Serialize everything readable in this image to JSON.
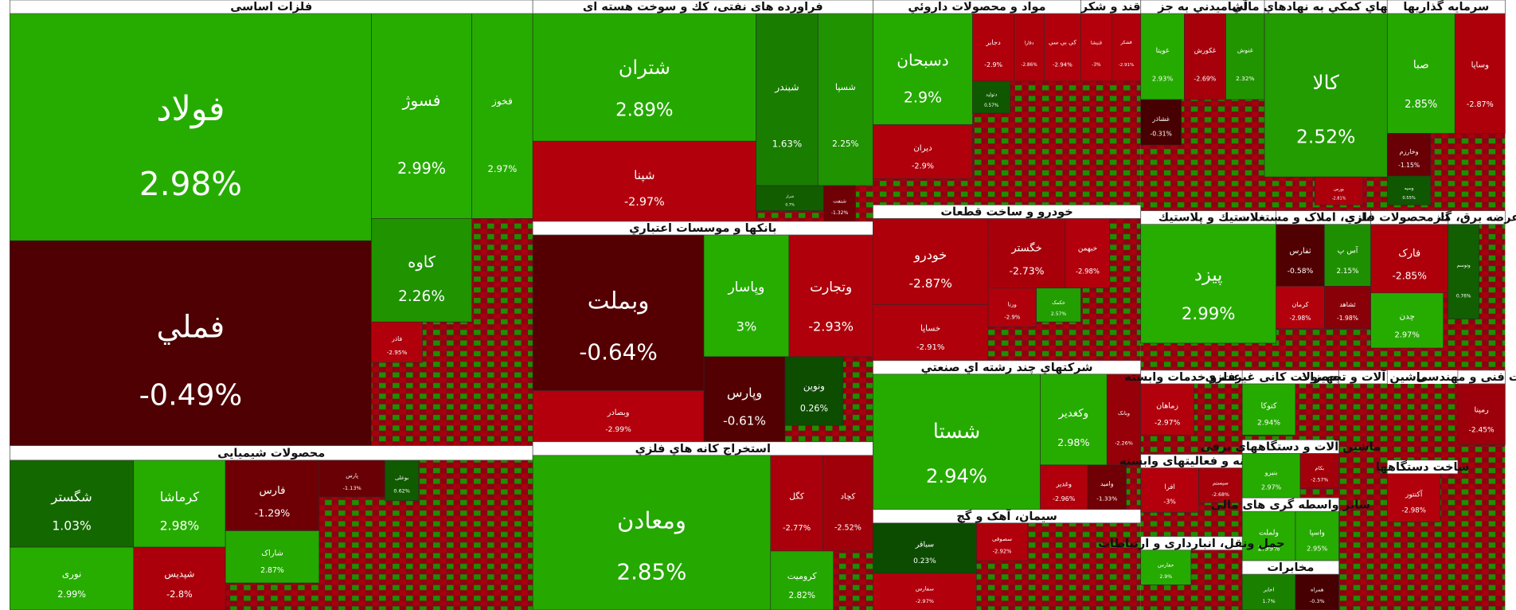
{
  "chart_data": {
    "type": "treemap",
    "positive_color": "#26ad00",
    "negative_color": "#b3000c",
    "zero_positive_color": "#0a4400",
    "zero_negative_color": "#3a0000",
    "groups": [
      {
        "name": "فلزات اساسی",
        "names": [
          "فولاد",
          "فملي",
          "فسوژ",
          "فخوز",
          "کاوه",
          "فاذر"
        ],
        "values": [
          2.98,
          -0.49,
          2.99,
          2.97,
          2.26,
          -2.95
        ],
        "value_labels": [
          "2.98%",
          "-0.49%",
          "2.99%",
          "2.97%",
          "2.26%",
          "-2.95%"
        ]
      },
      {
        "name": "محصولات شیمیایی",
        "names": [
          "شگستر",
          "کرماشا",
          "نوری",
          "شپدیس",
          "فارس",
          "شاراک",
          "پارس",
          "بوعلی"
        ],
        "values": [
          1.03,
          2.98,
          2.99,
          -2.8,
          -1.29,
          2.87,
          -1.13,
          0.62
        ],
        "value_labels": [
          "1.03%",
          "2.98%",
          "2.99%",
          "-2.8%",
          "-1.29%",
          "2.87%",
          "-1.13%",
          "0.62%"
        ]
      },
      {
        "name": "فراورده های نفتی، كك و سوخت هسته ای",
        "names": [
          "شتران",
          "شپنا",
          "شبندر",
          "شسپا",
          "شراز",
          "شنفت"
        ],
        "values": [
          2.89,
          -2.97,
          1.63,
          2.25,
          0.7,
          -1.32
        ],
        "value_labels": [
          "2.89%",
          "-2.97%",
          "1.63%",
          "2.25%",
          "0.7%",
          "-1.32%"
        ]
      },
      {
        "name": "بانكها و موسسات اعتباري",
        "names": [
          "وبملت",
          "وبصادر",
          "وپاسار",
          "وتجارت",
          "وپارس",
          "ونوین"
        ],
        "values": [
          -0.64,
          -2.99,
          3,
          -2.93,
          -0.61,
          0.26
        ],
        "value_labels": [
          "-0.64%",
          "-2.99%",
          "3%",
          "-2.93%",
          "-0.61%",
          "0.26%"
        ]
      },
      {
        "name": "استخراج كانه هاي فلزي",
        "names": [
          "ومعادن",
          "کگل",
          "کچاد",
          "کروميت"
        ],
        "values": [
          2.85,
          -2.77,
          -2.52,
          2.82
        ],
        "value_labels": [
          "2.85%",
          "-2.77%",
          "-2.52%",
          "2.82%"
        ]
      },
      {
        "name": "مواد و محصولات داروئي",
        "names": [
          "دسبحان",
          "دیران",
          "دجابر",
          "دفارا",
          "کی بی سی",
          "دتولید"
        ],
        "values": [
          2.9,
          -2.9,
          -2.9,
          -2.86,
          -2.94,
          0.57
        ],
        "value_labels": [
          "2.9%",
          "-2.9%",
          "-2.9%",
          "-2.86%",
          "-2.94%",
          "0.57%"
        ]
      },
      {
        "name": "قند و شکر",
        "names": [
          "قنیشا",
          "قشکر"
        ],
        "values": [
          -3,
          -2.91
        ],
        "value_labels": [
          "-3%",
          "-2.91%"
        ]
      },
      {
        "name": "خودرو و ساخت قطعات",
        "names": [
          "خودرو",
          "خساپا",
          "خگستر",
          "خبهمن",
          "ورنا",
          "خکمک"
        ],
        "values": [
          -2.87,
          -2.91,
          -2.73,
          -2.98,
          -2.9,
          2.57
        ],
        "value_labels": [
          "-2.87%",
          "-2.91%",
          "-2.73%",
          "-2.98%",
          "-2.9%",
          "2.57%"
        ]
      },
      {
        "name": "شرکتهاي چند رشته اي صنعتي",
        "names": [
          "شستا",
          "وکغدیر",
          "وبانک",
          "وغدیر",
          "وامید"
        ],
        "values": [
          2.94,
          2.98,
          -2.26,
          -2.96,
          -1.33
        ],
        "value_labels": [
          "2.94%",
          "2.98%",
          "-2.26%",
          "-2.96%",
          "-1.33%"
        ]
      },
      {
        "name": "سیمان، آهک و گچ",
        "names": [
          "سباقر",
          "سفارس",
          "سصوفی"
        ],
        "values": [
          0.23,
          -2.97,
          -2.92
        ],
        "value_labels": [
          "0.23%",
          "-2.97%",
          "-2.92%"
        ]
      },
      {
        "name": "آشاميدني به جز",
        "names": [
          "غويتا",
          "غکورش",
          "غنوش",
          "غشاذر"
        ],
        "values": [
          2.93,
          -2.69,
          2.32,
          -0.31
        ],
        "value_labels": [
          "2.93%",
          "-2.69%",
          "2.32%",
          "-0.31%"
        ]
      },
      {
        "name": "فعاليتهاي كمكي به نهادهاي مالي",
        "names": [
          "کالا",
          "بورس"
        ],
        "values": [
          2.52,
          -2.81
        ],
        "value_labels": [
          "2.52%",
          "-2.81%"
        ]
      },
      {
        "name": "سرمايه گذاريها",
        "names": [
          "صبا",
          "وساپا",
          "وخارزم",
          "وسپه"
        ],
        "values": [
          2.85,
          -2.87,
          -1.15,
          0.55
        ],
        "value_labels": [
          "2.85%",
          "-2.87%",
          "-1.15%",
          "0.55%"
        ]
      },
      {
        "name": "لاستيك و پلاستيك",
        "names": [
          "پیزد"
        ],
        "values": [
          2.99
        ],
        "value_labels": [
          "2.99%"
        ]
      },
      {
        "name": "انبوه سازی، املاک و مستغلات",
        "names": [
          "ثفارس",
          "آس پ",
          "کرمان",
          "ثشاهد"
        ],
        "values": [
          -0.58,
          2.15,
          -2.98,
          -1.98
        ],
        "value_labels": [
          "-0.58%",
          "2.15%",
          "-2.98%",
          "-1.98%"
        ]
      },
      {
        "name": "ساخت محصولات فلزي",
        "names": [
          "فارک",
          "چدن"
        ],
        "values": [
          -2.85,
          2.97
        ],
        "value_labels": [
          "-2.85%",
          "2.97%"
        ]
      },
      {
        "name": "عرضه برق، گاز",
        "names": [
          "وتوسم"
        ],
        "values": [
          0.76
        ],
        "value_labels": [
          "0.76%"
        ]
      },
      {
        "name": "زراعت و خدمات وابسته",
        "names": [
          "زماهان"
        ],
        "values": [
          -2.97
        ],
        "value_labels": [
          "-2.97%"
        ]
      },
      {
        "name": "سایر محصولات کانی غیرفلزی",
        "names": [
          "کتوکا"
        ],
        "values": [
          2.94
        ],
        "value_labels": [
          "2.94%"
        ]
      },
      {
        "name": "ماشین آلات و تجهیزات",
        "names": [],
        "values": [],
        "value_labels": []
      },
      {
        "name": "خدمات فنی و مهندسی",
        "names": [
          "رمپنا"
        ],
        "values": [
          -2.45
        ],
        "value_labels": [
          "-2.45%"
        ]
      },
      {
        "name": "رایانه و فعالیتهای وابسته",
        "names": [
          "افرا",
          "سیستم"
        ],
        "values": [
          -3,
          -2.68
        ],
        "value_labels": [
          "-3%",
          "-2.68%"
        ]
      },
      {
        "name": "ماشین آلات و دستگاههای برقی",
        "names": [
          "بنیرو",
          "بکام"
        ],
        "values": [
          2.97,
          -2.57
        ],
        "value_labels": [
          "2.97%",
          "-2.57%"
        ]
      },
      {
        "name": "سایر واسطه گری های مالی",
        "names": [
          "ولملت",
          "واسپا"
        ],
        "values": [
          2.99,
          2.95
        ],
        "value_labels": [
          "2.99%",
          "2.95%"
        ]
      },
      {
        "name": "حمل ونقل، انبارداری و ارتباطات",
        "names": [
          "حفارس"
        ],
        "values": [
          2.9
        ],
        "value_labels": [
          "2.9%"
        ]
      },
      {
        "name": "مخابرات",
        "names": [
          "اخابر",
          "همراه"
        ],
        "values": [
          1.7,
          -0.3
        ],
        "value_labels": [
          "1.7%",
          "-0.3%"
        ]
      },
      {
        "name": "ساخت دستگاهها",
        "names": [
          "آکنتور"
        ],
        "values": [
          -2.98
        ],
        "value_labels": [
          "-2.98%"
        ]
      }
    ]
  }
}
